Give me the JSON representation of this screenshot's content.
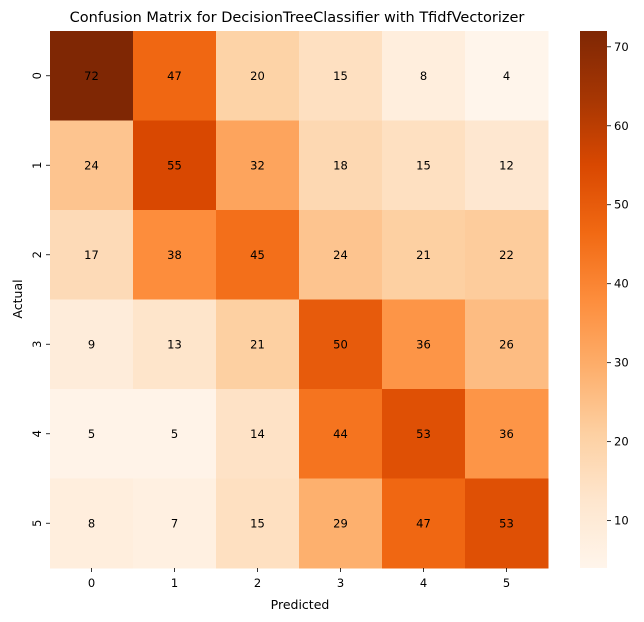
{
  "chart_data": {
    "type": "heatmap",
    "title": "Confusion Matrix for DecisionTreeClassifier with TfidfVectorizer",
    "xlabel": "Predicted",
    "ylabel": "Actual",
    "x_categories": [
      "0",
      "1",
      "2",
      "3",
      "4",
      "5"
    ],
    "y_categories": [
      "0",
      "1",
      "2",
      "3",
      "4",
      "5"
    ],
    "values": [
      [
        72,
        47,
        20,
        15,
        8,
        4
      ],
      [
        24,
        55,
        32,
        18,
        15,
        12
      ],
      [
        17,
        38,
        45,
        24,
        21,
        22
      ],
      [
        9,
        13,
        21,
        50,
        36,
        26
      ],
      [
        5,
        5,
        14,
        44,
        53,
        36
      ],
      [
        8,
        7,
        15,
        29,
        47,
        53
      ]
    ],
    "colormap": "Oranges",
    "colors": {
      "low": "#fff5eb",
      "high": "#7f2704"
    },
    "colorbar": {
      "range": [
        4,
        72
      ],
      "ticks": [
        10,
        20,
        30,
        40,
        50,
        60,
        70
      ]
    },
    "grid": false
  }
}
